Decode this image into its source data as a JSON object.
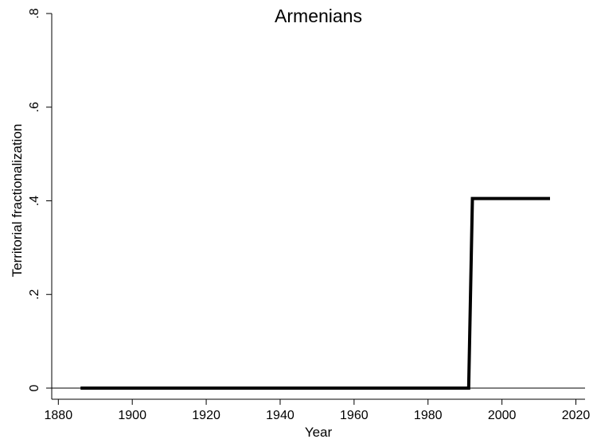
{
  "chart_data": {
    "type": "line",
    "title": "Armenians",
    "xlabel": "Year",
    "ylabel": "Territorial fractionalization",
    "xlim": [
      1876,
      2022
    ],
    "ylim": [
      0,
      0.8
    ],
    "x_ticks": [
      1880,
      1900,
      1920,
      1940,
      1960,
      1980,
      2000,
      2020
    ],
    "x_tick_labels": [
      "1880",
      "1900",
      "1920",
      "1940",
      "1960",
      "1980",
      "2000",
      "2020"
    ],
    "y_ticks": [
      0,
      0.2,
      0.4,
      0.6,
      0.8
    ],
    "y_tick_labels": [
      "0",
      ".2",
      ".4",
      ".6",
      ".8"
    ],
    "grid": false,
    "legend": "none",
    "series": [
      {
        "color": "#000000",
        "x": [
          1886,
          1991,
          1992,
          2013
        ],
        "y": [
          0,
          0,
          0.405,
          0.405
        ]
      }
    ]
  }
}
